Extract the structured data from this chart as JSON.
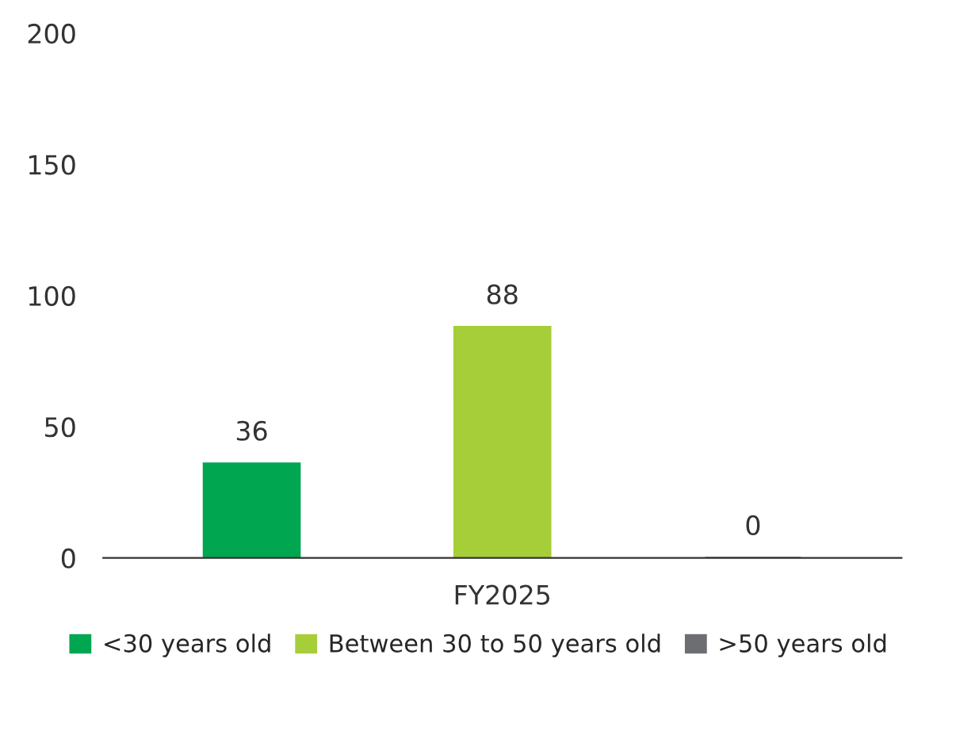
{
  "chart_data": {
    "type": "bar",
    "categories": [
      "FY2025"
    ],
    "series": [
      {
        "name": "<30 years old",
        "color": "#00a650",
        "values": [
          36
        ]
      },
      {
        "name": "Between 30 to 50 years old",
        "color": "#a6ce39",
        "values": [
          88
        ]
      },
      {
        "name": ">50 years old",
        "color": "#6d6e71",
        "values": [
          0
        ]
      }
    ],
    "ylim": [
      0,
      200
    ],
    "yticks": [
      0,
      50,
      100,
      150,
      200
    ],
    "grid": false,
    "legend": "bottom",
    "data_labels": true
  }
}
